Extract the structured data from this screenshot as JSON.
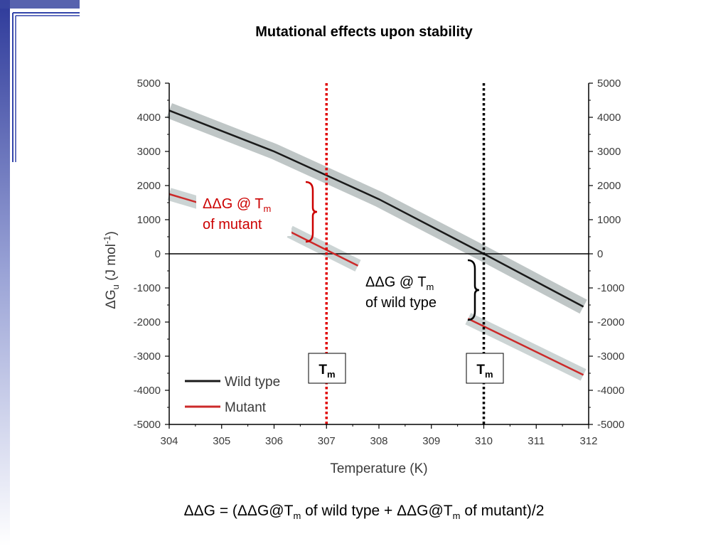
{
  "slide": {
    "title": "Mutational effects upon stability",
    "colors": {
      "sidebar_gradient_top": "#2e3a9a",
      "sidebar_gradient_bottom": "#ffffff",
      "accent_line": "#3344aa"
    }
  },
  "annotations": {
    "mutant": {
      "line1_prefix": "ΔΔG @ T",
      "line1_sub": "m",
      "line2": "of mutant",
      "color": "#cc0000"
    },
    "wild_type": {
      "line1_prefix": "ΔΔG @ T",
      "line1_sub": "m",
      "line2": "of wild type",
      "color": "#000000"
    },
    "tm_box_mutant": {
      "main": "T",
      "sub": "m"
    },
    "tm_box_wild": {
      "main": "T",
      "sub": "m"
    }
  },
  "formula": {
    "part1": "ΔΔG = (ΔΔG@T",
    "sub1": "m",
    "part2": " of wild type + ΔΔG@T",
    "sub2": "m",
    "part3": " of mutant)/2"
  },
  "chart_data": {
    "type": "line",
    "xlabel": "Temperature (K)",
    "ylabel": "ΔGu (J mol-1)",
    "ylabel_parts": {
      "delta": "ΔG",
      "sub": "u",
      "rest1": " (J mol",
      "sup": "-1",
      "rest2": ")"
    },
    "xlim": [
      304,
      312
    ],
    "ylim": [
      -5000,
      5000
    ],
    "x_ticks": [
      304,
      305,
      306,
      307,
      308,
      309,
      310,
      311,
      312
    ],
    "y_ticks": [
      5000,
      4000,
      3000,
      2000,
      1000,
      0,
      -1000,
      -2000,
      -3000,
      -4000,
      -5000
    ],
    "y_tick_labels": [
      "5000",
      "4000",
      "3000",
      "2000",
      "1000",
      "0",
      "-1000",
      "-2000",
      "-3000",
      "-4000",
      "-5000"
    ],
    "right_axis_mirrored": true,
    "legend_position": "bottom-left",
    "series": [
      {
        "name": "Wild type",
        "color": "#1a1a1a",
        "band_color": "#8a9898",
        "x": [
          304,
          306,
          308,
          310,
          311.9
        ],
        "y": [
          4200,
          3000,
          1600,
          0,
          -1550
        ]
      },
      {
        "name": "Mutant",
        "color": "#cc2a2a",
        "band_color": "#9aa9a9",
        "segments": [
          {
            "x": [
              304,
              306.3
            ],
            "y": [
              1750,
              700
            ]
          },
          {
            "x": [
              306.3,
              307.6
            ],
            "y": [
              650,
              -350
            ]
          },
          {
            "x": [
              309.7,
              311.9
            ],
            "y": [
              -1900,
              -3550
            ]
          }
        ]
      }
    ],
    "vertical_lines": [
      {
        "x": 307,
        "color": "#e00000",
        "style": "dotted",
        "label": "Tm"
      },
      {
        "x": 310,
        "color": "#000000",
        "style": "dotted",
        "label": "Tm"
      }
    ],
    "zero_line": true
  }
}
